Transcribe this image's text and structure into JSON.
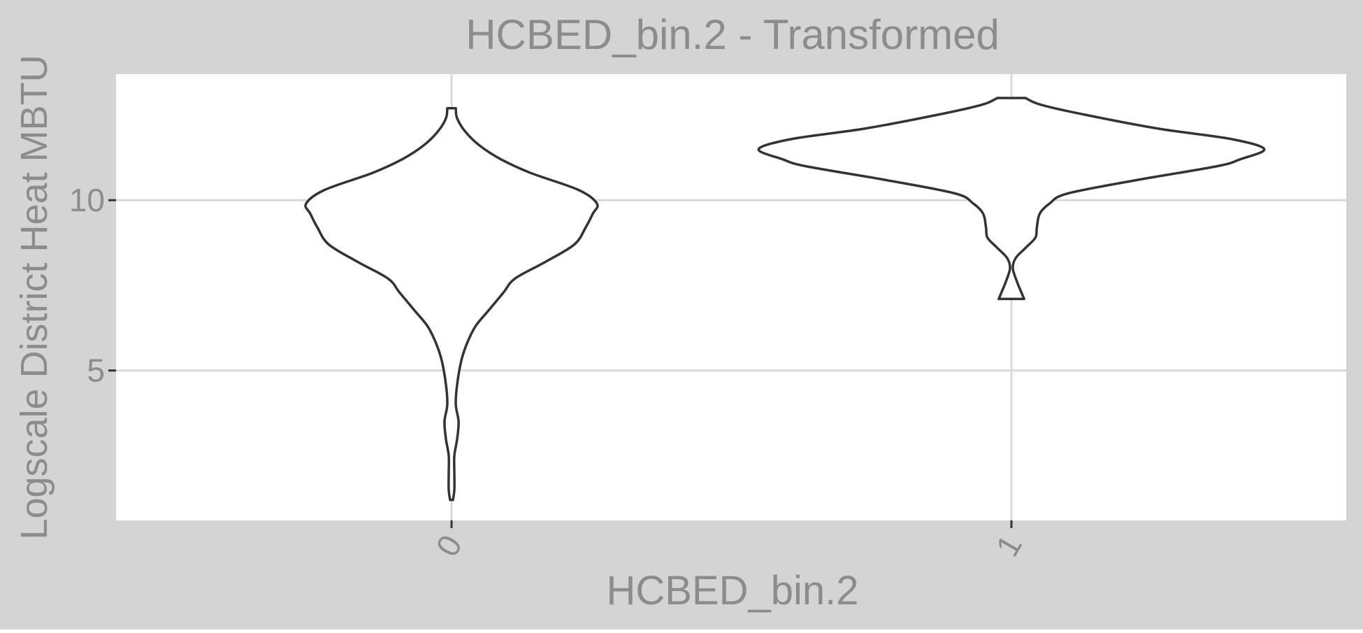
{
  "chart_data": {
    "type": "violin",
    "title": "HCBED_bin.2 - Transformed",
    "xlabel": "HCBED_bin.2",
    "ylabel": "Logscale District Heat MBTU",
    "categories": [
      "0",
      "1"
    ],
    "yticks": [
      5,
      10
    ],
    "ylim": [
      0.6,
      13.7
    ],
    "grid": true,
    "colors": {
      "outer_background": "#d4d4d4",
      "panel": "#ffffff",
      "gridline": "#d9d9d9",
      "outline": "#333333",
      "text": "#8c8c8c"
    },
    "violins": [
      {
        "category": "0",
        "y_min": 1.2,
        "y_max": 12.7,
        "density_profile": [
          {
            "y": 1.2,
            "half_width": 0.01
          },
          {
            "y": 1.5,
            "half_width": 0.02
          },
          {
            "y": 2.0,
            "half_width": 0.02
          },
          {
            "y": 2.5,
            "half_width": 0.02
          },
          {
            "y": 3.0,
            "half_width": 0.04
          },
          {
            "y": 3.5,
            "half_width": 0.05
          },
          {
            "y": 4.0,
            "half_width": 0.03
          },
          {
            "y": 4.6,
            "half_width": 0.04
          },
          {
            "y": 5.3,
            "half_width": 0.07
          },
          {
            "y": 5.8,
            "half_width": 0.11
          },
          {
            "y": 6.3,
            "half_width": 0.17
          },
          {
            "y": 6.8,
            "half_width": 0.27
          },
          {
            "y": 7.3,
            "half_width": 0.37
          },
          {
            "y": 7.7,
            "half_width": 0.45
          },
          {
            "y": 8.2,
            "half_width": 0.67
          },
          {
            "y": 8.7,
            "half_width": 0.87
          },
          {
            "y": 9.2,
            "half_width": 0.95
          },
          {
            "y": 9.6,
            "half_width": 1.0
          },
          {
            "y": 9.9,
            "half_width": 1.03
          },
          {
            "y": 10.3,
            "half_width": 0.9
          },
          {
            "y": 10.8,
            "half_width": 0.56
          },
          {
            "y": 11.2,
            "half_width": 0.35
          },
          {
            "y": 11.6,
            "half_width": 0.2
          },
          {
            "y": 12.0,
            "half_width": 0.1
          },
          {
            "y": 12.4,
            "half_width": 0.04
          },
          {
            "y": 12.7,
            "half_width": 0.03
          }
        ]
      },
      {
        "category": "1",
        "y_min": 7.1,
        "y_max": 13.0,
        "density_profile": [
          {
            "y": 7.1,
            "half_width": 0.09
          },
          {
            "y": 7.3,
            "half_width": 0.07
          },
          {
            "y": 7.6,
            "half_width": 0.04
          },
          {
            "y": 8.0,
            "half_width": 0.01
          },
          {
            "y": 8.3,
            "half_width": 0.03
          },
          {
            "y": 8.6,
            "half_width": 0.1
          },
          {
            "y": 8.9,
            "half_width": 0.17
          },
          {
            "y": 9.2,
            "half_width": 0.18
          },
          {
            "y": 9.6,
            "half_width": 0.2
          },
          {
            "y": 9.9,
            "half_width": 0.27
          },
          {
            "y": 10.2,
            "half_width": 0.4
          },
          {
            "y": 10.6,
            "half_width": 0.9
          },
          {
            "y": 11.0,
            "half_width": 1.46
          },
          {
            "y": 11.2,
            "half_width": 1.62
          },
          {
            "y": 11.5,
            "half_width": 1.79
          },
          {
            "y": 11.8,
            "half_width": 1.55
          },
          {
            "y": 12.1,
            "half_width": 1.04
          },
          {
            "y": 12.5,
            "half_width": 0.53
          },
          {
            "y": 12.8,
            "half_width": 0.21
          },
          {
            "y": 13.0,
            "half_width": 0.1
          }
        ]
      }
    ]
  }
}
